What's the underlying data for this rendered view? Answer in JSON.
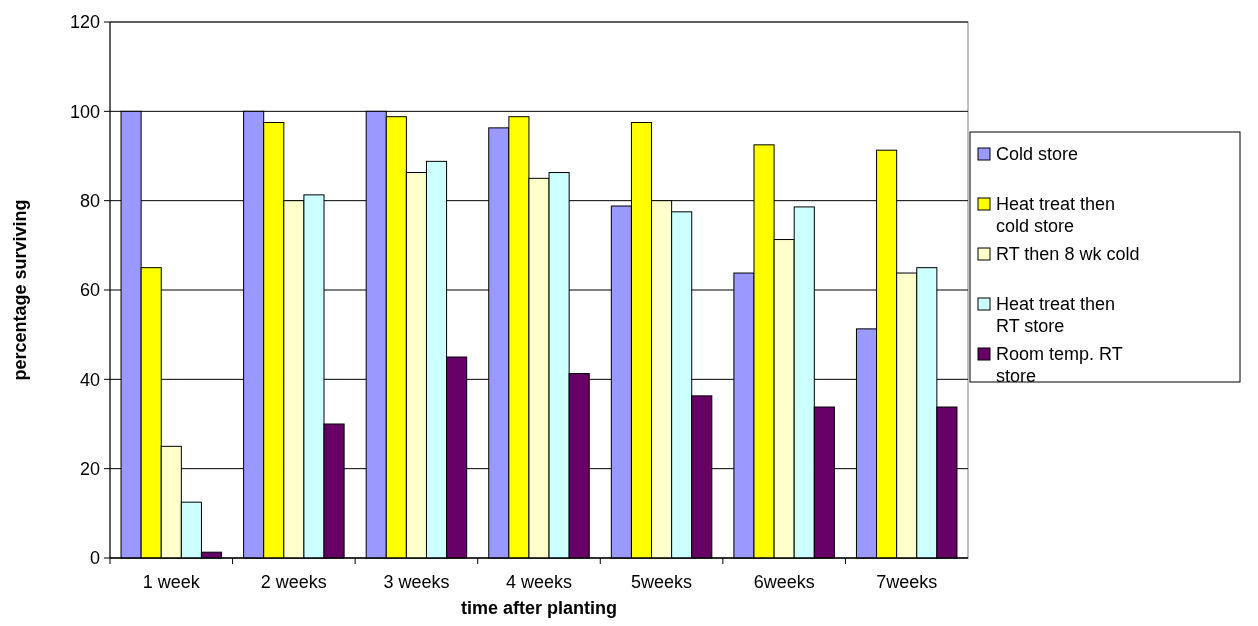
{
  "chart_data": {
    "type": "bar",
    "xlabel": "time after planting",
    "ylabel": "percentage surviving",
    "categories": [
      "1 week",
      "2 weeks",
      "3 weeks",
      "4 weeks",
      "5weeks",
      "6weeks",
      "7weeks"
    ],
    "series": [
      {
        "name": "Cold store",
        "color": "#9999ff",
        "values": [
          100,
          100,
          100,
          96.3,
          78.8,
          63.8,
          51.3
        ]
      },
      {
        "name": "Heat treat then cold store",
        "color": "#ffff00",
        "values": [
          65,
          97.5,
          98.8,
          98.8,
          97.5,
          92.5,
          91.3
        ]
      },
      {
        "name": "RT then 8 wk cold",
        "color": "#ffffcc",
        "values": [
          25,
          80,
          86.3,
          85,
          80,
          71.3,
          63.8
        ]
      },
      {
        "name": "Heat treat then RT store",
        "color": "#ccffff",
        "values": [
          12.5,
          81.3,
          88.8,
          86.3,
          77.5,
          78.6,
          65
        ]
      },
      {
        "name": "Room temp. RT store",
        "color": "#660066",
        "values": [
          1.3,
          30,
          45,
          41.3,
          36.3,
          33.8,
          33.8
        ]
      }
    ],
    "ylim": [
      0,
      120
    ],
    "yticks": [
      0,
      20,
      40,
      60,
      80,
      100,
      120
    ],
    "grid": "y",
    "legend": "right"
  }
}
